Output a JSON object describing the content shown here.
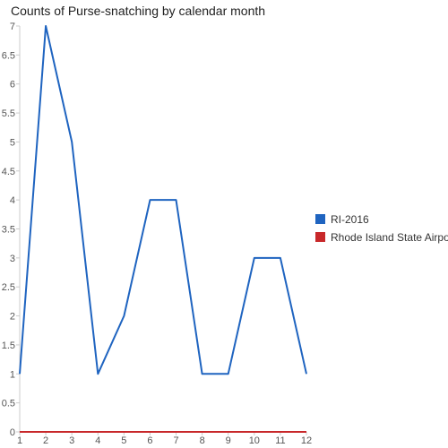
{
  "chart_data": {
    "type": "line",
    "title": "Counts of Purse-snatching by calendar month",
    "xlabel": "",
    "ylabel": "",
    "x": [
      1,
      2,
      3,
      4,
      5,
      6,
      7,
      8,
      9,
      10,
      11,
      12
    ],
    "xlim": [
      1,
      12
    ],
    "ylim": [
      0,
      7
    ],
    "yticks": [
      0,
      0.5,
      1,
      1.5,
      2,
      2.5,
      3,
      3.5,
      4,
      4.5,
      5,
      5.5,
      6,
      6.5,
      7
    ],
    "grid": false,
    "legend_position": "right",
    "series": [
      {
        "name": "RI-2016",
        "color": "#1f64c0",
        "values": [
          1,
          7,
          5,
          1,
          2,
          4,
          4,
          1,
          1,
          3,
          3,
          1
        ]
      },
      {
        "name": "Rhode Island State Airport",
        "color": "#c8282a",
        "values": [
          0,
          0,
          0,
          0,
          0,
          0,
          0,
          0,
          0,
          0,
          0,
          0
        ]
      }
    ]
  }
}
